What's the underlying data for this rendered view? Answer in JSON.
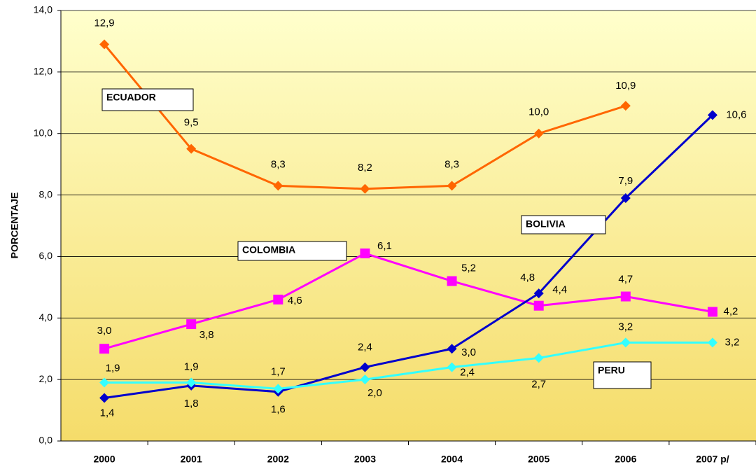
{
  "chart_data": {
    "type": "line",
    "y_label": "PORCENTAJE",
    "categories": [
      "2000",
      "2001",
      "2002",
      "2003",
      "2004",
      "2005",
      "2006",
      "2007 p/"
    ],
    "series": [
      {
        "name": "ECUADOR",
        "color": "#ff6600",
        "marker": "diamond",
        "values": [
          12.9,
          9.5,
          8.3,
          8.2,
          8.3,
          10.0,
          10.9,
          null
        ],
        "value_labels": [
          "12,9",
          "9,5",
          "8,3",
          "8,2",
          "8,3",
          "10,0",
          "10,9",
          null
        ]
      },
      {
        "name": "COLOMBIA",
        "color": "#ff00ff",
        "marker": "square",
        "values": [
          3.0,
          3.8,
          4.6,
          6.1,
          5.2,
          4.4,
          4.7,
          4.2
        ],
        "value_labels": [
          "3,0",
          "3,8",
          "4,6",
          "6,1",
          "5,2",
          "4,4",
          "4,7",
          "4,2"
        ]
      },
      {
        "name": "BOLIVIA",
        "color": "#0000cc",
        "marker": "diamond",
        "values": [
          1.4,
          1.8,
          1.6,
          2.4,
          3.0,
          4.8,
          7.9,
          10.6
        ],
        "value_labels": [
          "1,4",
          "1,8",
          "1,6",
          "2,4",
          "3,0",
          "4,8",
          "7,9",
          "10,6"
        ]
      },
      {
        "name": "PERU",
        "color": "#33ffff",
        "marker": "diamond",
        "values": [
          1.9,
          1.9,
          1.7,
          2.0,
          2.4,
          2.7,
          3.2,
          3.2
        ],
        "value_labels": [
          "1,9",
          "1,9",
          "1,7",
          "2,0",
          "2,4",
          "2,7",
          "3,2",
          "3,2"
        ]
      }
    ],
    "ylim": [
      0,
      14
    ],
    "yticks": [
      {
        "value": 0,
        "label": "0,0"
      },
      {
        "value": 2,
        "label": "2,0"
      },
      {
        "value": 4,
        "label": "4,0"
      },
      {
        "value": 6,
        "label": "6,0"
      },
      {
        "value": 8,
        "label": "8,0"
      },
      {
        "value": 10,
        "label": "10,0"
      },
      {
        "value": 12,
        "label": "12,0"
      },
      {
        "value": 14,
        "label": "14,0"
      }
    ],
    "grid": true
  }
}
